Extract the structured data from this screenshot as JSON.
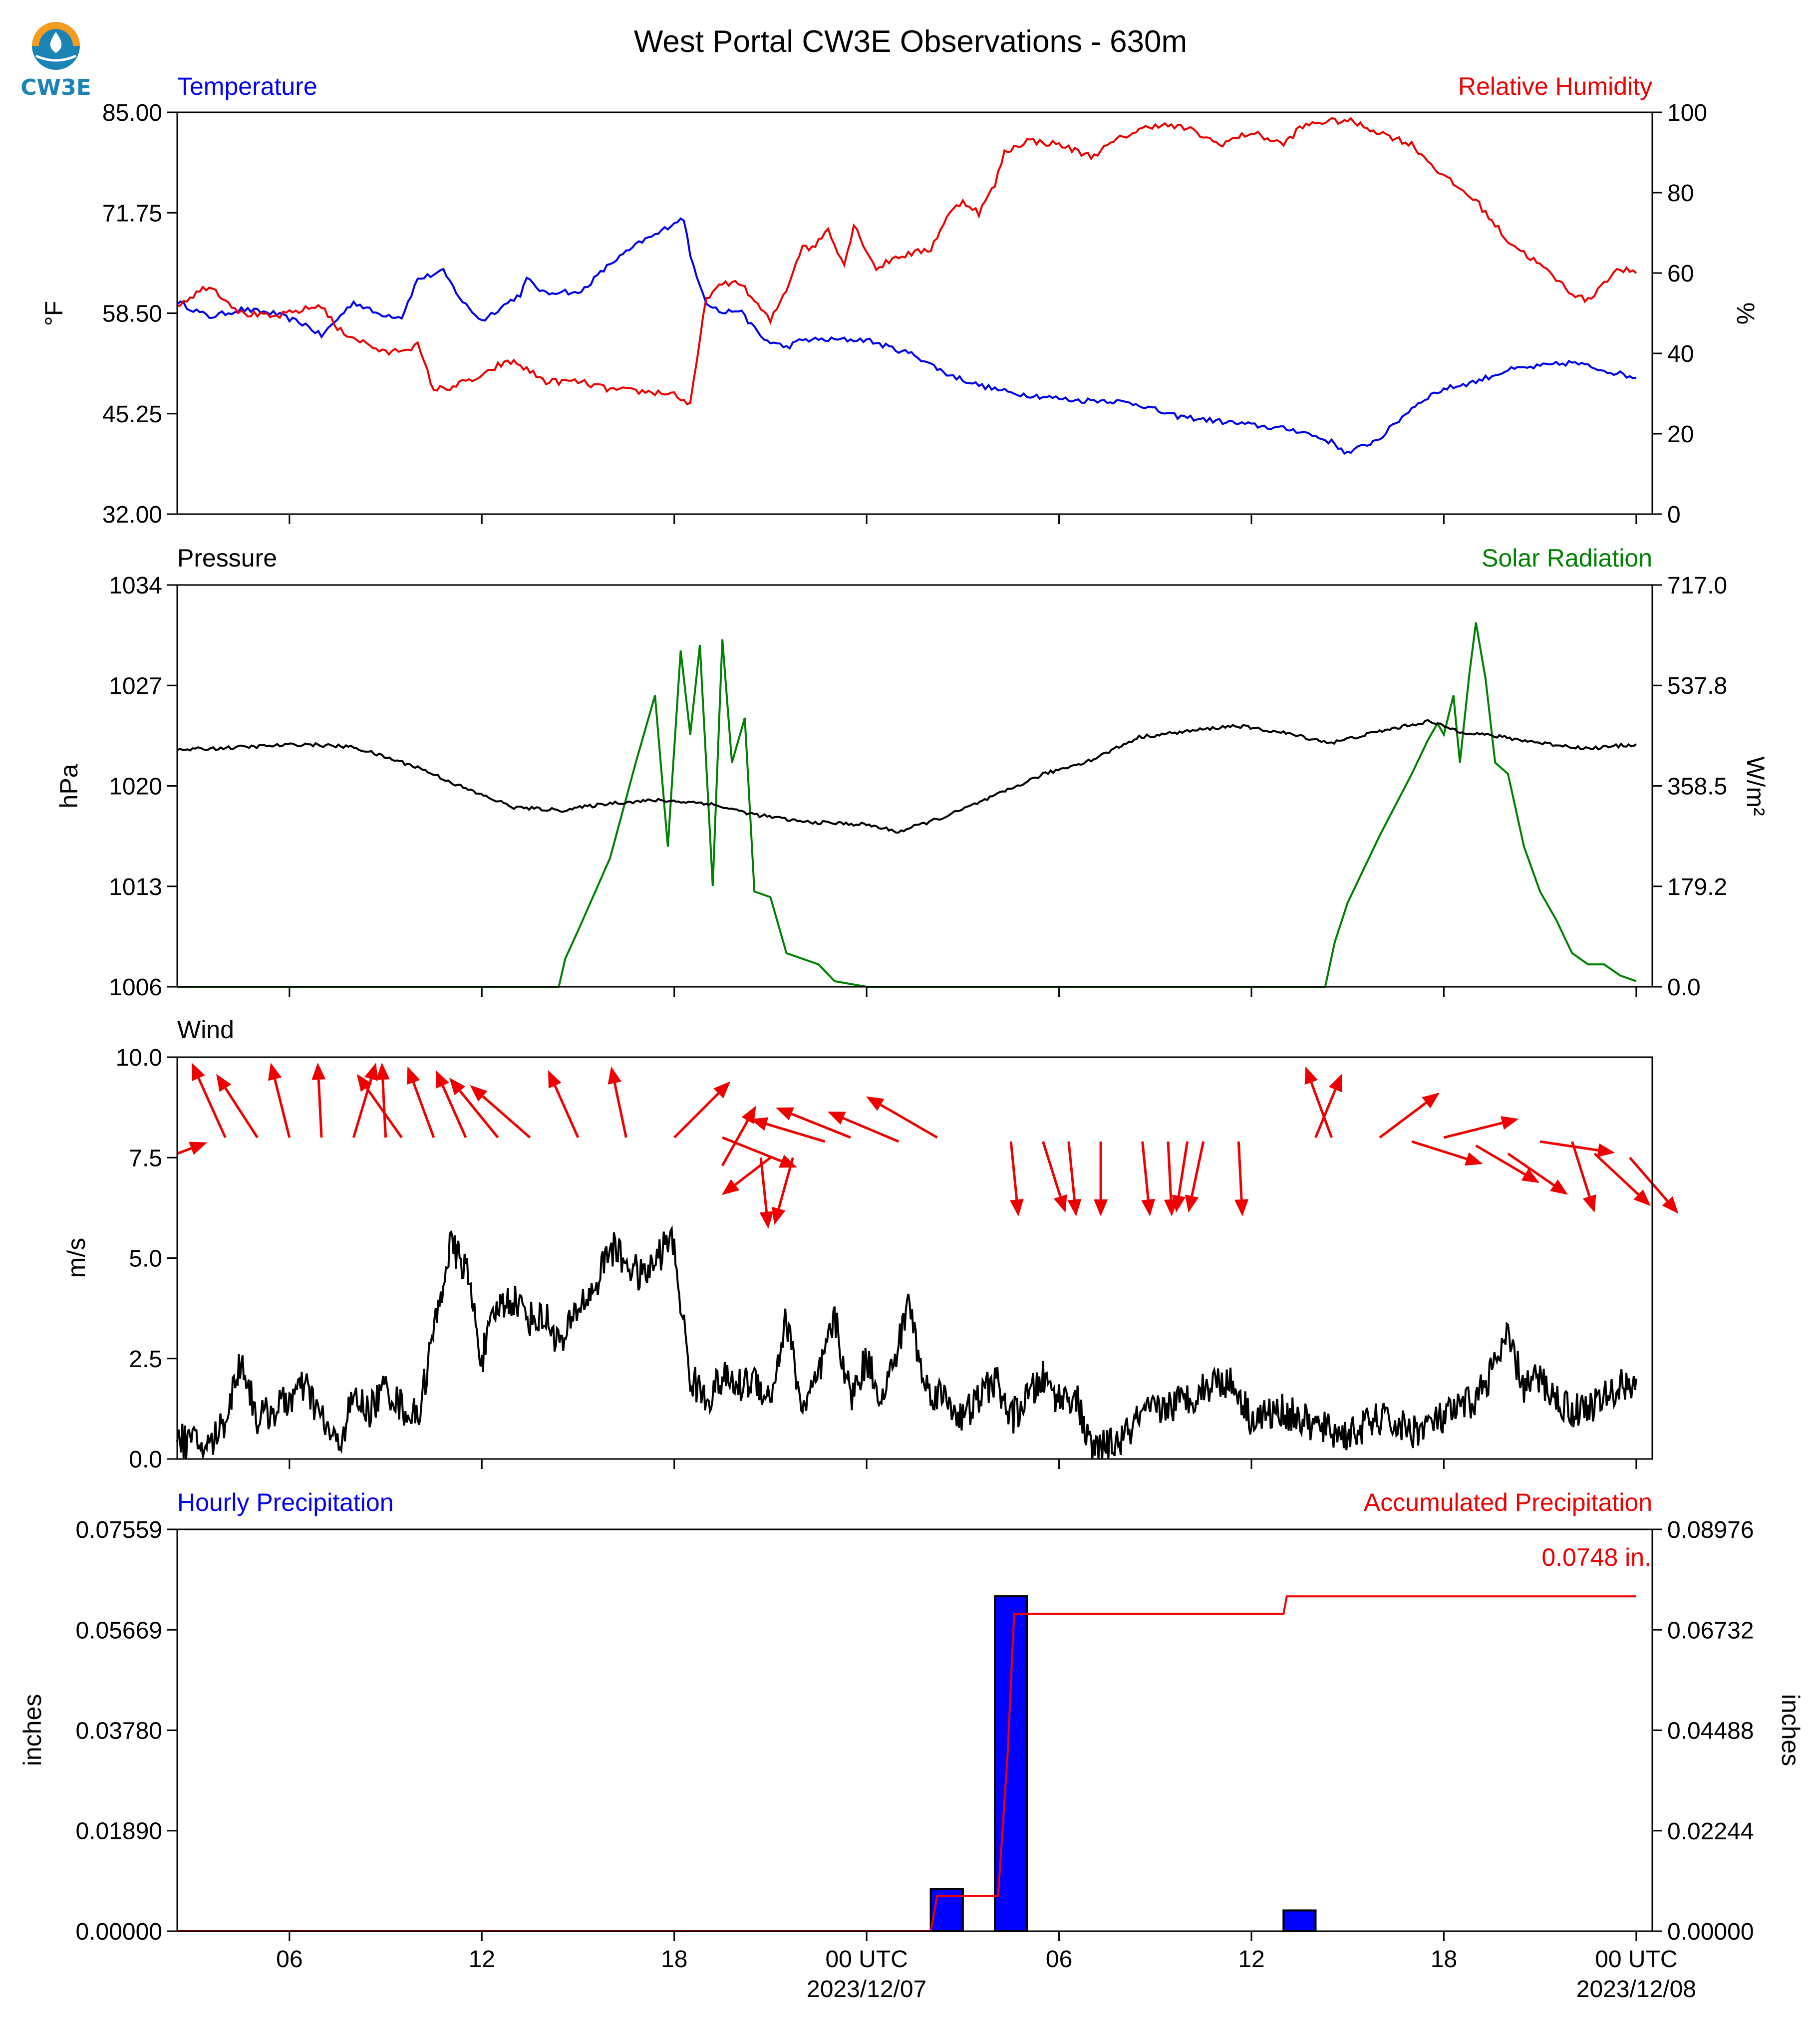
{
  "title": "West Portal CW3E Observations - 630m",
  "logo": {
    "text": "CW3E",
    "color": "#1c84b4",
    "accent": "#f39c1f"
  },
  "colors": {
    "blue": "#0000ee",
    "red": "#ee0000",
    "green": "#008000",
    "black": "#000000",
    "bar": "#0000ff"
  },
  "time_axis": {
    "range_hours": [
      -21.5,
      24.5
    ],
    "ticks": [
      {
        "t": -18,
        "label": "06",
        "sub": ""
      },
      {
        "t": -12,
        "label": "12",
        "sub": ""
      },
      {
        "t": -6,
        "label": "18",
        "sub": ""
      },
      {
        "t": 0,
        "label": "00 UTC",
        "sub": "2023/12/07"
      },
      {
        "t": 6,
        "label": "06",
        "sub": ""
      },
      {
        "t": 12,
        "label": "12",
        "sub": ""
      },
      {
        "t": 18,
        "label": "18",
        "sub": ""
      },
      {
        "t": 24,
        "label": "00 UTC",
        "sub": "2023/12/08"
      }
    ]
  },
  "chart_data": [
    {
      "type": "line",
      "title_left": "Temperature",
      "title_right": "Relative Humidity",
      "ylabel_left": "°F",
      "ylabel_right": "%",
      "ylim_left": [
        32.0,
        85.0
      ],
      "ylim_right": [
        0,
        100
      ],
      "yticks_left": [
        "32.00",
        "45.25",
        "58.50",
        "71.75",
        "85.00"
      ],
      "yticks_right": [
        "0",
        "20",
        "40",
        "60",
        "80",
        "100"
      ],
      "series": [
        {
          "name": "Temperature",
          "axis": "left",
          "color": "#0000ee",
          "x": [
            -21.5,
            -20.5,
            -19.5,
            -18.5,
            -17.5,
            -17.0,
            -16.0,
            -15.3,
            -14.5,
            -14.0,
            -13.2,
            -12.6,
            -12.0,
            -11.5,
            -10.8,
            -10.6,
            -10.0,
            -9.5,
            -9.0,
            -8.0,
            -7.0,
            -6.5,
            -6.0,
            -5.7,
            -5.5,
            -5.0,
            -4.5,
            -4.0,
            -3.2,
            -2.5,
            -2.0,
            -1.0,
            0.0,
            0.7,
            1.5,
            2.5,
            3.5,
            4.5,
            5.5,
            6.5,
            7.5,
            8.5,
            9.5,
            10.5,
            11.5,
            12.5,
            13.5,
            14.5,
            15.0,
            15.5,
            16.0,
            16.5,
            17.0,
            17.5,
            18.0,
            19.0,
            20.0,
            21.0,
            22.0,
            23.0,
            24.0
          ],
          "y": [
            60.0,
            58.0,
            59.0,
            58.5,
            57.0,
            55.5,
            60.0,
            58.5,
            58.0,
            63.0,
            64.0,
            60.0,
            57.5,
            59.0,
            61.0,
            63.0,
            61.0,
            61.5,
            61.0,
            65.0,
            68.0,
            69.0,
            70.5,
            71.0,
            66.0,
            60.0,
            58.5,
            59.0,
            55.0,
            54.0,
            55.0,
            55.0,
            55.0,
            54.0,
            53.0,
            50.5,
            49.0,
            48.0,
            47.5,
            47.0,
            47.0,
            46.5,
            45.0,
            44.5,
            44.0,
            43.5,
            43.0,
            41.5,
            40.0,
            41.0,
            42.0,
            44.0,
            46.0,
            47.5,
            48.5,
            49.5,
            51.0,
            51.5,
            52.0,
            51.0,
            50.0
          ]
        },
        {
          "name": "Relative Humidity",
          "axis": "right",
          "color": "#ee0000",
          "x": [
            -21.5,
            -20.5,
            -19.5,
            -18.5,
            -18.0,
            -17.0,
            -16.5,
            -16.0,
            -15.0,
            -14.0,
            -13.5,
            -13.0,
            -12.5,
            -12.0,
            -11.5,
            -11.0,
            -10.0,
            -9.0,
            -8.0,
            -7.0,
            -6.0,
            -5.5,
            -5.0,
            -4.5,
            -4.0,
            -3.0,
            -2.5,
            -2.0,
            -1.7,
            -1.2,
            -0.7,
            -0.4,
            0.3,
            0.9,
            1.5,
            2.0,
            2.5,
            3.0,
            3.5,
            4.0,
            4.3,
            5.0,
            6.0,
            7.0,
            8.0,
            9.0,
            10.0,
            11.0,
            12.0,
            13.0,
            13.5,
            14.0,
            15.0,
            16.0,
            17.0,
            18.0,
            19.0,
            20.0,
            21.0,
            22.0,
            22.5,
            23.0,
            23.5,
            24.0
          ],
          "y": [
            52.0,
            57.0,
            50.0,
            49.0,
            50.0,
            52.0,
            46.0,
            44.0,
            40.0,
            42.0,
            31.0,
            31.5,
            33.0,
            34.0,
            37.0,
            38.0,
            33.0,
            33.0,
            31.0,
            30.5,
            30.0,
            27.0,
            54.0,
            57.0,
            58.0,
            48.0,
            56.0,
            67.0,
            66.0,
            71.0,
            62.0,
            72.0,
            61.0,
            64.0,
            65.0,
            66.0,
            74.0,
            78.0,
            75.0,
            82.0,
            90.0,
            93.0,
            92.0,
            89.0,
            94.0,
            97.0,
            96.0,
            92.0,
            95.0,
            92.0,
            96.0,
            97.5,
            98.0,
            95.0,
            92.0,
            84.0,
            78.0,
            68.0,
            62.0,
            55.0,
            53.0,
            58.0,
            61.0,
            60.0
          ]
        }
      ]
    },
    {
      "type": "line",
      "title_left": "Pressure",
      "title_right": "Solar Radiation",
      "ylabel_left": "hPa",
      "ylabel_right": "W/m²",
      "ylim_left": [
        1006,
        1034
      ],
      "ylim_right": [
        0.0,
        717.0
      ],
      "yticks_left": [
        "1006",
        "1013",
        "1020",
        "1027",
        "1034"
      ],
      "yticks_right": [
        "0.0",
        "179.2",
        "358.5",
        "537.8",
        "717.0"
      ],
      "series": [
        {
          "name": "Pressure",
          "axis": "left",
          "color": "#000000",
          "x": [
            -21.5,
            -19.5,
            -17.5,
            -16.0,
            -14.0,
            -12.5,
            -11.0,
            -9.5,
            -8.0,
            -6.5,
            -5.0,
            -3.5,
            -2.0,
            0.0,
            1.0,
            2.5,
            4.0,
            5.5,
            7.0,
            8.5,
            10.0,
            11.5,
            13.0,
            14.5,
            16.0,
            17.5,
            18.5,
            19.5,
            21.0,
            22.5,
            24.0
          ],
          "y": [
            1022.5,
            1022.7,
            1022.9,
            1022.7,
            1021.3,
            1019.8,
            1018.5,
            1018.3,
            1018.8,
            1019.0,
            1018.8,
            1018.0,
            1017.5,
            1017.3,
            1016.8,
            1017.9,
            1019.3,
            1020.8,
            1021.8,
            1023.4,
            1023.8,
            1024.2,
            1023.7,
            1023.0,
            1023.8,
            1024.5,
            1023.8,
            1023.5,
            1023.0,
            1022.6,
            1022.9
          ]
        },
        {
          "name": "Solar Radiation",
          "axis": "right",
          "color": "#008000",
          "x": [
            -21.5,
            -9.6,
            -9.4,
            -9.0,
            -8.0,
            -7.2,
            -6.6,
            -6.2,
            -5.8,
            -5.5,
            -5.2,
            -4.8,
            -4.5,
            -4.2,
            -3.8,
            -3.5,
            -3.0,
            -2.5,
            -1.5,
            -1.0,
            0.0,
            5.0,
            10.0,
            14.3,
            14.6,
            15.0,
            16.0,
            17.0,
            17.5,
            17.8,
            18.0,
            18.3,
            18.5,
            18.8,
            19.0,
            19.3,
            19.6,
            20.0,
            20.5,
            21.0,
            21.5,
            22.0,
            22.5,
            23.0,
            23.5,
            24.0
          ],
          "y": [
            0,
            0,
            50,
            100,
            230,
            400,
            520,
            250,
            600,
            450,
            610,
            180,
            620,
            400,
            480,
            170,
            160,
            60,
            40,
            10,
            0,
            0,
            0,
            0,
            80,
            150,
            270,
            380,
            440,
            470,
            450,
            520,
            400,
            560,
            650,
            550,
            400,
            380,
            250,
            170,
            120,
            60,
            40,
            40,
            20,
            10
          ]
        }
      ]
    },
    {
      "type": "line",
      "title_left": "Wind",
      "ylabel_left": "m/s",
      "ylim_left": [
        0.0,
        10.0
      ],
      "yticks_left": [
        "0.0",
        "2.5",
        "5.0",
        "7.5",
        "10.0"
      ],
      "series": [
        {
          "name": "Wind speed",
          "axis": "left",
          "color": "#000000",
          "x": [
            -21.5,
            -20.5,
            -20.0,
            -19.5,
            -19.0,
            -18.5,
            -18.0,
            -17.5,
            -17.0,
            -16.5,
            -16.0,
            -15.5,
            -15.0,
            -14.5,
            -14.0,
            -13.0,
            -12.5,
            -12.0,
            -11.5,
            -11.0,
            -10.5,
            -10.0,
            -9.5,
            -9.0,
            -8.5,
            -8.0,
            -7.0,
            -6.5,
            -6.2,
            -6.0,
            -5.5,
            -5.0,
            -4.5,
            -4.0,
            -3.5,
            -3.0,
            -2.5,
            -2.0,
            -1.5,
            -1.0,
            -0.5,
            0.0,
            0.5,
            1.0,
            1.3,
            1.8,
            2.5,
            3.0,
            3.5,
            4.0,
            4.5,
            5.0,
            5.5,
            6.0,
            6.5,
            7.0,
            7.5,
            8.0,
            8.5,
            9.0,
            10.0,
            11.0,
            11.5,
            12.0,
            13.0,
            14.0,
            15.0,
            16.0,
            17.0,
            18.0,
            19.0,
            19.5,
            20.0,
            20.5,
            21.0,
            21.5,
            22.0,
            22.5,
            23.0,
            23.5,
            24.0
          ],
          "y": [
            0.5,
            0.3,
            1.0,
            2.5,
            1.0,
            1.2,
            1.5,
            1.8,
            1.0,
            0.3,
            1.5,
            1.2,
            1.8,
            1.3,
            1.0,
            5.3,
            4.8,
            2.5,
            3.8,
            4.0,
            3.5,
            3.5,
            2.8,
            3.8,
            4.2,
            5.3,
            4.5,
            5.0,
            5.5,
            5.2,
            2.0,
            1.5,
            2.0,
            1.8,
            2.0,
            1.5,
            3.5,
            1.2,
            2.0,
            3.5,
            1.5,
            2.5,
            1.5,
            2.8,
            4.0,
            1.8,
            1.5,
            1.0,
            1.5,
            2.0,
            1.0,
            1.5,
            2.0,
            1.5,
            1.6,
            0.2,
            0.3,
            0.5,
            1.0,
            1.2,
            1.5,
            2.0,
            1.8,
            1.0,
            1.2,
            0.8,
            0.6,
            1.0,
            0.7,
            1.0,
            1.5,
            2.2,
            3.0,
            1.8,
            2.0,
            1.5,
            1.2,
            1.3,
            1.5,
            1.8,
            2.0
          ]
        }
      ],
      "wind_arrows": {
        "color": "#ee0000",
        "items": [
          {
            "t": -21.5,
            "y": 7.6,
            "dx": 0.8,
            "dy": 0.3
          },
          {
            "t": -20.0,
            "y": 8.0,
            "dx": -0.9,
            "dy": 2.0
          },
          {
            "t": -19.0,
            "y": 8.0,
            "dx": -1.1,
            "dy": 1.7
          },
          {
            "t": -18.0,
            "y": 8.0,
            "dx": -0.5,
            "dy": 2.0
          },
          {
            "t": -17.0,
            "y": 8.0,
            "dx": -0.1,
            "dy": 2.0
          },
          {
            "t": -16.0,
            "y": 8.0,
            "dx": 0.6,
            "dy": 2.0
          },
          {
            "t": -15.0,
            "y": 8.0,
            "dx": -0.1,
            "dy": 2.0
          },
          {
            "t": -14.5,
            "y": 8.0,
            "dx": -1.2,
            "dy": 1.7
          },
          {
            "t": -13.5,
            "y": 8.0,
            "dx": -0.7,
            "dy": 1.9
          },
          {
            "t": -12.5,
            "y": 8.0,
            "dx": -0.8,
            "dy": 1.8
          },
          {
            "t": -11.5,
            "y": 8.0,
            "dx": -1.3,
            "dy": 1.6
          },
          {
            "t": -10.5,
            "y": 8.0,
            "dx": -1.6,
            "dy": 1.4
          },
          {
            "t": -9.0,
            "y": 8.0,
            "dx": -0.8,
            "dy": 1.8
          },
          {
            "t": -7.5,
            "y": 8.0,
            "dx": -0.4,
            "dy": 1.9
          },
          {
            "t": -6.0,
            "y": 8.0,
            "dx": 1.5,
            "dy": 1.5
          },
          {
            "t": -4.5,
            "y": 7.3,
            "dx": 0.9,
            "dy": 1.6
          },
          {
            "t": -4.5,
            "y": 8.0,
            "dx": 2.0,
            "dy": -0.8
          },
          {
            "t": -3.3,
            "y": 7.5,
            "dx": 0.2,
            "dy": -1.9
          },
          {
            "t": -3.0,
            "y": 7.5,
            "dx": -1.3,
            "dy": -1.0
          },
          {
            "t": -2.3,
            "y": 7.5,
            "dx": -0.5,
            "dy": -1.8
          },
          {
            "t": -1.3,
            "y": 7.9,
            "dx": -2.0,
            "dy": 0.6
          },
          {
            "t": -0.5,
            "y": 8.0,
            "dx": -2.0,
            "dy": 0.8
          },
          {
            "t": 1.0,
            "y": 7.9,
            "dx": -1.9,
            "dy": 0.8
          },
          {
            "t": 2.2,
            "y": 8.0,
            "dx": -1.9,
            "dy": 1.1
          },
          {
            "t": 4.5,
            "y": 7.9,
            "dx": 0.2,
            "dy": -2.0
          },
          {
            "t": 5.5,
            "y": 7.9,
            "dx": 0.6,
            "dy": -1.9
          },
          {
            "t": 6.3,
            "y": 7.9,
            "dx": 0.2,
            "dy": -2.0
          },
          {
            "t": 7.3,
            "y": 7.9,
            "dx": 0.0,
            "dy": -2.0
          },
          {
            "t": 8.6,
            "y": 7.9,
            "dx": 0.2,
            "dy": -2.0
          },
          {
            "t": 9.4,
            "y": 7.9,
            "dx": 0.1,
            "dy": -2.0
          },
          {
            "t": 10.0,
            "y": 7.9,
            "dx": -0.3,
            "dy": -1.9
          },
          {
            "t": 10.5,
            "y": 7.9,
            "dx": -0.4,
            "dy": -1.9
          },
          {
            "t": 11.6,
            "y": 7.9,
            "dx": 0.1,
            "dy": -2.0
          },
          {
            "t": 14.5,
            "y": 8.0,
            "dx": -0.7,
            "dy": 1.9
          },
          {
            "t": 14.0,
            "y": 8.0,
            "dx": 0.7,
            "dy": 1.7
          },
          {
            "t": 16.0,
            "y": 8.0,
            "dx": 1.6,
            "dy": 1.2
          },
          {
            "t": 17.0,
            "y": 7.9,
            "dx": 1.9,
            "dy": -0.6
          },
          {
            "t": 18.0,
            "y": 8.0,
            "dx": 2.0,
            "dy": 0.5
          },
          {
            "t": 19.0,
            "y": 7.8,
            "dx": 1.7,
            "dy": -1.0
          },
          {
            "t": 20.0,
            "y": 7.6,
            "dx": 1.6,
            "dy": -1.1
          },
          {
            "t": 21.0,
            "y": 7.9,
            "dx": 2.0,
            "dy": -0.3
          },
          {
            "t": 22.0,
            "y": 7.9,
            "dx": 0.6,
            "dy": -1.9
          },
          {
            "t": 22.7,
            "y": 7.6,
            "dx": 1.5,
            "dy": -1.4
          },
          {
            "t": 23.8,
            "y": 7.5,
            "dx": 1.3,
            "dy": -1.5
          }
        ]
      }
    },
    {
      "type": "bar",
      "title_left": "Hourly Precipitation",
      "title_right": "Accumulated Precipitation",
      "ylabel_left": "inches",
      "ylabel_right": "inches",
      "ylim_left": [
        0.0,
        0.07559
      ],
      "ylim_right": [
        0.0,
        0.08976
      ],
      "yticks_left": [
        "0.00000",
        "0.01890",
        "0.03780",
        "0.05669",
        "0.07559"
      ],
      "yticks_right": [
        "0.00000",
        "0.02244",
        "0.04488",
        "0.06732",
        "0.08976"
      ],
      "annotation": "0.0748 in.",
      "bars": {
        "name": "Hourly Precipitation",
        "color": "#0000ff",
        "x": [
          2.5,
          4.5,
          13.5
        ],
        "values": [
          0.0079,
          0.063,
          0.0039
        ]
      },
      "accumulated": {
        "name": "Accumulated Precipitation",
        "color": "#ee0000",
        "x": [
          -21.5,
          2.0,
          2.2,
          4.1,
          4.4,
          4.6,
          13.0,
          13.1,
          24.0
        ],
        "y": [
          0.0,
          0.0,
          0.0079,
          0.0079,
          0.04,
          0.0709,
          0.0709,
          0.0748,
          0.0748
        ]
      }
    }
  ]
}
